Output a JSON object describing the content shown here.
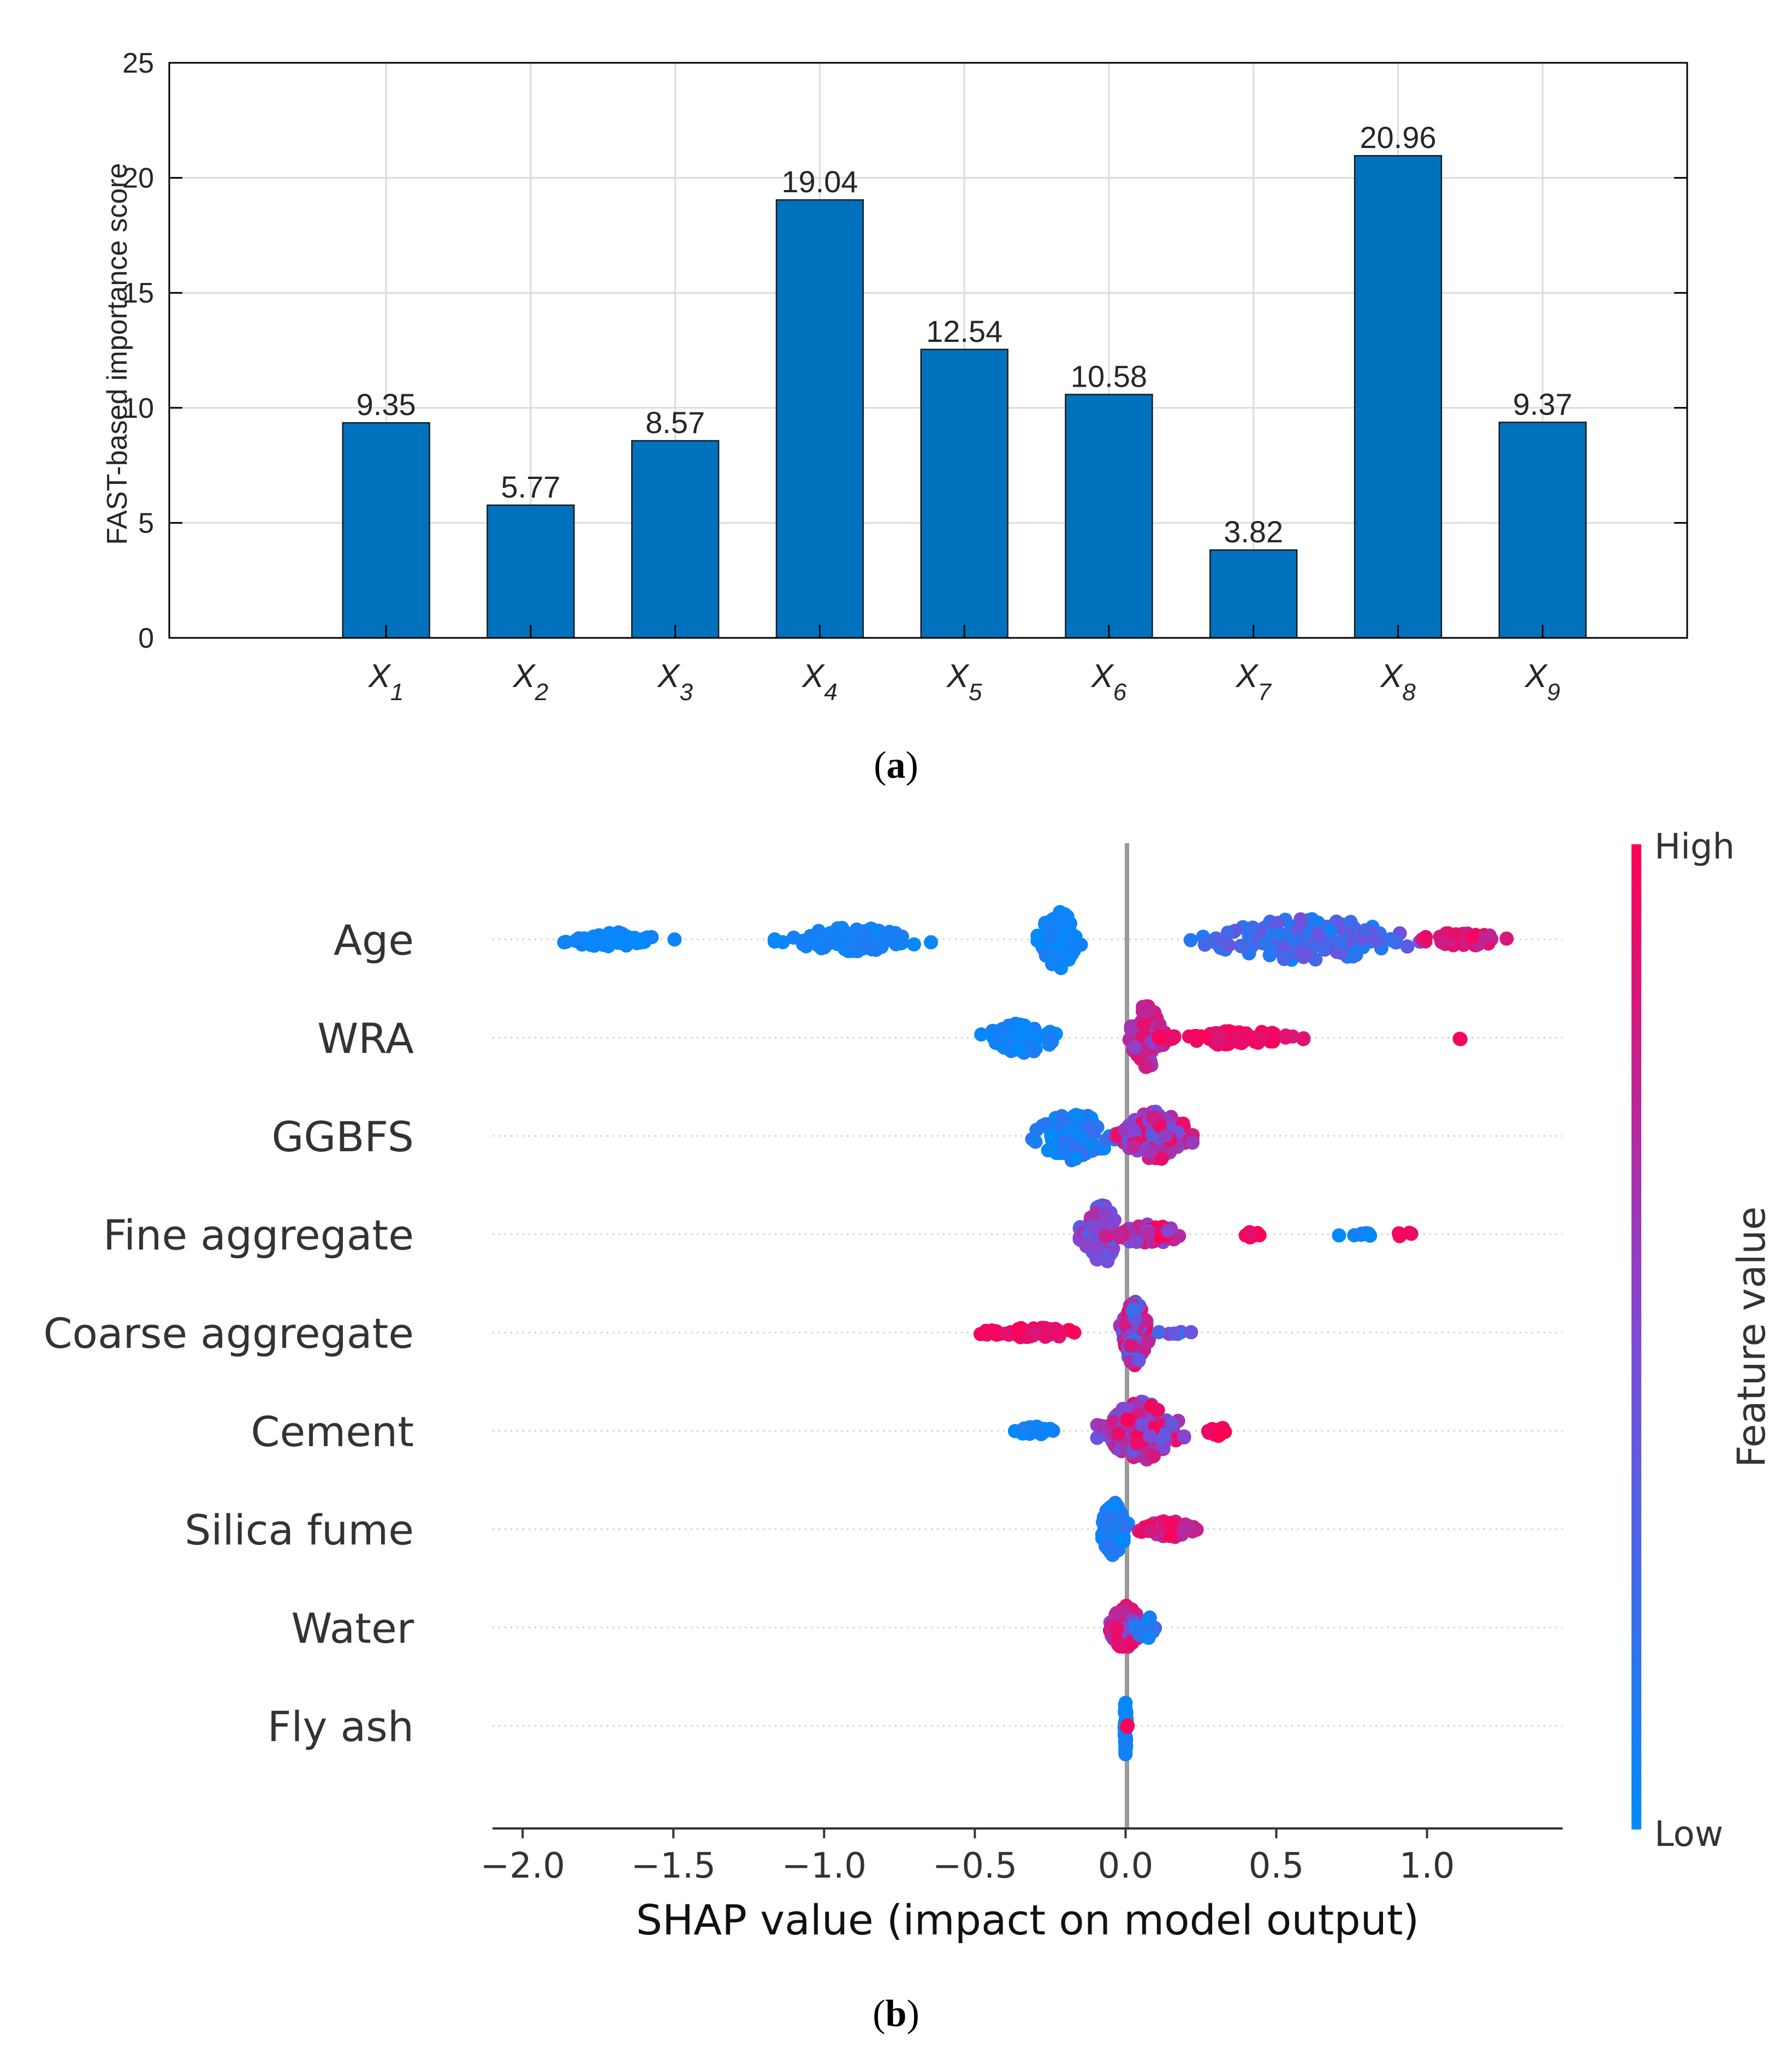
{
  "chart_data": [
    {
      "type": "bar",
      "panel_caption": {
        "open": "(",
        "letter": "a",
        "close": ")"
      },
      "ylabel": "FAST-based importance score",
      "xlabel": "",
      "categories": [
        {
          "base": "X",
          "sub": "1"
        },
        {
          "base": "X",
          "sub": "2"
        },
        {
          "base": "X",
          "sub": "3"
        },
        {
          "base": "X",
          "sub": "4"
        },
        {
          "base": "X",
          "sub": "5"
        },
        {
          "base": "X",
          "sub": "6"
        },
        {
          "base": "X",
          "sub": "7"
        },
        {
          "base": "X",
          "sub": "8"
        },
        {
          "base": "X",
          "sub": "9"
        }
      ],
      "values": [
        9.35,
        5.77,
        8.57,
        19.04,
        12.54,
        10.58,
        3.82,
        20.96,
        9.37
      ],
      "labels": [
        "9.35",
        "5.77",
        "8.57",
        "19.04",
        "12.54",
        "10.58",
        "3.82",
        "20.96",
        "9.37"
      ],
      "ylim": [
        0,
        25
      ],
      "yticks": [
        0,
        5,
        10,
        15,
        20,
        25
      ],
      "xlim": [
        -0.5,
        10
      ],
      "grid": true,
      "bar_color": "#0072bd"
    },
    {
      "type": "scatter",
      "subtype": "shap-beeswarm",
      "panel_caption": {
        "open": "(",
        "letter": "b",
        "close": ")"
      },
      "xlabel": "SHAP value (impact on model output)",
      "xlim": [
        -2.1,
        1.45
      ],
      "xticks": [
        -2.0,
        -1.5,
        -1.0,
        -0.5,
        0.0,
        0.5,
        1.0
      ],
      "xtick_labels": [
        "−2.0",
        "−1.5",
        "−1.0",
        "−0.5",
        "0.0",
        "0.5",
        "1.0"
      ],
      "colorbar": {
        "label": "Feature value",
        "high": "High",
        "low": "Low",
        "high_color": "#ff0052",
        "low_color": "#008bfb"
      },
      "features": [
        {
          "name": "Age",
          "clusters": [
            {
              "center": -1.7,
              "spread": 0.17,
              "count": 65,
              "value": [
                0.0,
                0.08
              ],
              "height": 14
            },
            {
              "center": -0.9,
              "spread": 0.22,
              "count": 100,
              "value": [
                0.02,
                0.12
              ],
              "height": 22
            },
            {
              "center": -0.22,
              "spread": 0.06,
              "count": 90,
              "value": [
                0.0,
                0.1
              ],
              "height": 55
            },
            {
              "center": 0.6,
              "spread": 0.32,
              "count": 140,
              "value": [
                0.05,
                0.45
              ],
              "height": 40
            },
            {
              "center": 1.12,
              "spread": 0.12,
              "count": 45,
              "value": [
                0.75,
                1.0
              ],
              "height": 14
            }
          ]
        },
        {
          "name": "WRA",
          "clusters": [
            {
              "center": -0.35,
              "spread": 0.11,
              "count": 70,
              "value": [
                0.0,
                0.12
              ],
              "height": 30
            },
            {
              "center": 0.07,
              "spread": 0.05,
              "count": 120,
              "value": [
                0.55,
                0.9
              ],
              "height": 60
            },
            {
              "center": 0.35,
              "spread": 0.2,
              "count": 80,
              "value": [
                0.85,
                1.0
              ],
              "height": 14
            },
            {
              "center": 1.12,
              "spread": 0.03,
              "count": 2,
              "value": [
                0.95,
                1.0
              ],
              "height": 4
            }
          ]
        },
        {
          "name": "GGBFS",
          "clusters": [
            {
              "center": -0.17,
              "spread": 0.12,
              "count": 110,
              "value": [
                0.0,
                0.25
              ],
              "height": 45
            },
            {
              "center": 0.1,
              "spread": 0.11,
              "count": 140,
              "value": [
                0.35,
                0.95
              ],
              "height": 45
            }
          ]
        },
        {
          "name": "Fine aggregate",
          "clusters": [
            {
              "center": -0.08,
              "spread": 0.06,
              "count": 100,
              "value": [
                0.3,
                0.7
              ],
              "height": 55
            },
            {
              "center": 0.08,
              "spread": 0.12,
              "count": 60,
              "value": [
                0.45,
                1.0
              ],
              "height": 18
            },
            {
              "center": 0.42,
              "spread": 0.03,
              "count": 12,
              "value": [
                0.9,
                1.0
              ],
              "height": 6
            },
            {
              "center": 0.78,
              "spread": 0.1,
              "count": 8,
              "value": [
                0.0,
                0.1
              ],
              "height": 4
            },
            {
              "center": 0.9,
              "spread": 0.1,
              "count": 4,
              "value": [
                0.9,
                1.0
              ],
              "height": 4
            }
          ]
        },
        {
          "name": "Coarse aggregate",
          "clusters": [
            {
              "center": -0.3,
              "spread": 0.16,
              "count": 55,
              "value": [
                0.85,
                1.0
              ],
              "height": 10
            },
            {
              "center": 0.03,
              "spread": 0.04,
              "count": 150,
              "value": [
                0.2,
                0.95
              ],
              "height": 60
            },
            {
              "center": 0.16,
              "spread": 0.05,
              "count": 6,
              "value": [
                0.0,
                0.7
              ],
              "height": 6
            }
          ]
        },
        {
          "name": "Cement",
          "clusters": [
            {
              "center": -0.3,
              "spread": 0.06,
              "count": 30,
              "value": [
                0.0,
                0.1
              ],
              "height": 8
            },
            {
              "center": 0.05,
              "spread": 0.12,
              "count": 180,
              "value": [
                0.35,
                1.0
              ],
              "height": 55
            },
            {
              "center": 0.3,
              "spread": 0.03,
              "count": 12,
              "value": [
                0.9,
                1.0
              ],
              "height": 10
            }
          ]
        },
        {
          "name": "Silica fume",
          "clusters": [
            {
              "center": -0.04,
              "spread": 0.04,
              "count": 110,
              "value": [
                0.0,
                0.2
              ],
              "height": 50
            },
            {
              "center": 0.14,
              "spread": 0.08,
              "count": 60,
              "value": [
                0.6,
                1.0
              ],
              "height": 16
            }
          ]
        },
        {
          "name": "Water",
          "clusters": [
            {
              "center": 0.0,
              "spread": 0.05,
              "count": 150,
              "value": [
                0.45,
                1.0
              ],
              "height": 40
            },
            {
              "center": 0.07,
              "spread": 0.04,
              "count": 15,
              "value": [
                0.0,
                0.3
              ],
              "height": 20
            }
          ]
        },
        {
          "name": "Fly ash",
          "clusters": [
            {
              "center": 0.0,
              "spread": 0.003,
              "count": 60,
              "value": [
                0.0,
                0.1
              ],
              "height": 55
            },
            {
              "center": 0.005,
              "spread": 0.002,
              "count": 3,
              "value": [
                0.9,
                1.0
              ],
              "height": 4
            }
          ]
        }
      ]
    }
  ]
}
